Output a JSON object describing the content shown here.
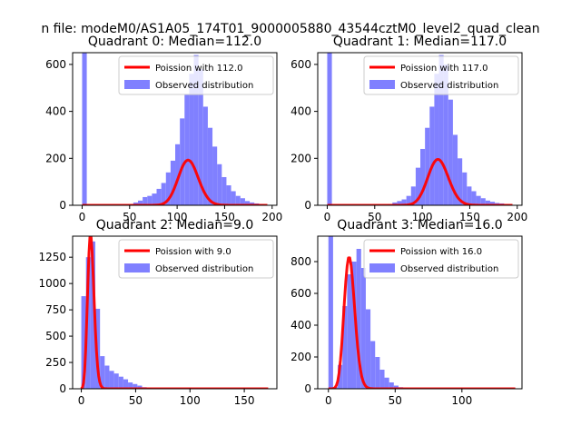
{
  "figure": {
    "suptitle": "n file: modeM0/AS1A05_174T01_9000005880_43544cztM0_level2_quad_clean"
  },
  "colors": {
    "histogram": "#8080ff",
    "poisson": "#ff0000"
  },
  "chart_data": [
    {
      "type": "bar",
      "title": "Quadrant 0: Median=112.0",
      "xlim": [
        -10,
        205
      ],
      "ylim": [
        0,
        650
      ],
      "xticks": [
        "0",
        "50",
        "100",
        "150",
        "200"
      ],
      "xtick_values": [
        0,
        50,
        100,
        150,
        200
      ],
      "yticks": [
        "0",
        "200",
        "400",
        "600"
      ],
      "ytick_values": [
        0,
        200,
        400,
        600
      ],
      "legend_position": "upper right",
      "series": [
        {
          "name": "Poission with 112.0",
          "kind": "line",
          "mean": 112.0,
          "scale": 5100,
          "x_range": [
            0,
            195
          ]
        },
        {
          "name": "Observed distribution",
          "kind": "histogram",
          "bin_start": 0,
          "bin_width": 4.9,
          "values": [
            650,
            0,
            0,
            0,
            0,
            0,
            0,
            0,
            0,
            0,
            5,
            12,
            20,
            35,
            40,
            50,
            70,
            95,
            140,
            190,
            260,
            370,
            470,
            560,
            640,
            580,
            420,
            330,
            250,
            175,
            120,
            85,
            60,
            40,
            30,
            18,
            12,
            8,
            5,
            2
          ]
        }
      ]
    },
    {
      "type": "bar",
      "title": "Quadrant 1: Median=117.0",
      "xlim": [
        -10,
        205
      ],
      "ylim": [
        0,
        650
      ],
      "xticks": [
        "0",
        "50",
        "100",
        "150",
        "200"
      ],
      "xtick_values": [
        0,
        50,
        100,
        150,
        200
      ],
      "yticks": [
        "0",
        "200",
        "400",
        "600"
      ],
      "ytick_values": [
        0,
        200,
        400,
        600
      ],
      "legend_position": "upper right",
      "series": [
        {
          "name": "Poission with 117.0",
          "kind": "line",
          "mean": 117.0,
          "scale": 5300,
          "x_range": [
            0,
            195
          ]
        },
        {
          "name": "Observed distribution",
          "kind": "histogram",
          "bin_start": 0,
          "bin_width": 4.9,
          "values": [
            650,
            0,
            0,
            0,
            0,
            0,
            0,
            0,
            0,
            0,
            0,
            0,
            0,
            5,
            12,
            18,
            25,
            40,
            80,
            160,
            240,
            330,
            420,
            560,
            640,
            600,
            450,
            300,
            200,
            140,
            80,
            60,
            40,
            30,
            20,
            15,
            10,
            8,
            5,
            2
          ]
        }
      ]
    },
    {
      "type": "bar",
      "title": "Quadrant 2: Median=9.0",
      "xlim": [
        -8,
        180
      ],
      "ylim": [
        0,
        1450
      ],
      "xticks": [
        "0",
        "50",
        "100",
        "150"
      ],
      "xtick_values": [
        0,
        50,
        100,
        150
      ],
      "yticks": [
        "0",
        "250",
        "500",
        "750",
        "1000",
        "1250"
      ],
      "ytick_values": [
        0,
        250,
        500,
        750,
        1000,
        1250
      ],
      "legend_position": "upper right",
      "series": [
        {
          "name": "Poission with 9.0",
          "kind": "line",
          "mean": 9.0,
          "scale": 11000,
          "x_range": [
            0,
            172
          ]
        },
        {
          "name": "Observed distribution",
          "kind": "histogram",
          "bin_start": 0,
          "bin_width": 4.3,
          "values": [
            880,
            1250,
            1400,
            760,
            310,
            220,
            170,
            145,
            115,
            90,
            60,
            45,
            30,
            15,
            8,
            4,
            2,
            0,
            0,
            0,
            0,
            0,
            0,
            0,
            0,
            0,
            0,
            0,
            0,
            0,
            0,
            0,
            0,
            0,
            0,
            0,
            0,
            0,
            0,
            0
          ]
        }
      ]
    },
    {
      "type": "bar",
      "title": "Quadrant 3: Median=16.0",
      "xlim": [
        -8,
        145
      ],
      "ylim": [
        0,
        960
      ],
      "xticks": [
        "0",
        "50",
        "100"
      ],
      "xtick_values": [
        0,
        50,
        100
      ],
      "yticks": [
        "0",
        "200",
        "400",
        "600",
        "800"
      ],
      "ytick_values": [
        0,
        200,
        400,
        600,
        800
      ],
      "legend_position": "upper right",
      "series": [
        {
          "name": "Poission with 16.0",
          "kind": "line",
          "mean": 16.0,
          "scale": 8300,
          "x_range": [
            0,
            140
          ]
        },
        {
          "name": "Observed distribution",
          "kind": "histogram",
          "bin_start": 0,
          "bin_width": 3.5,
          "values": [
            960,
            10,
            150,
            520,
            720,
            800,
            880,
            760,
            500,
            300,
            200,
            120,
            70,
            40,
            20,
            10,
            5,
            2,
            0,
            0,
            0,
            0,
            0,
            0,
            0,
            0,
            0,
            0,
            0,
            0,
            0,
            0,
            0,
            0,
            0,
            0,
            0,
            0,
            0,
            0
          ]
        }
      ]
    }
  ]
}
